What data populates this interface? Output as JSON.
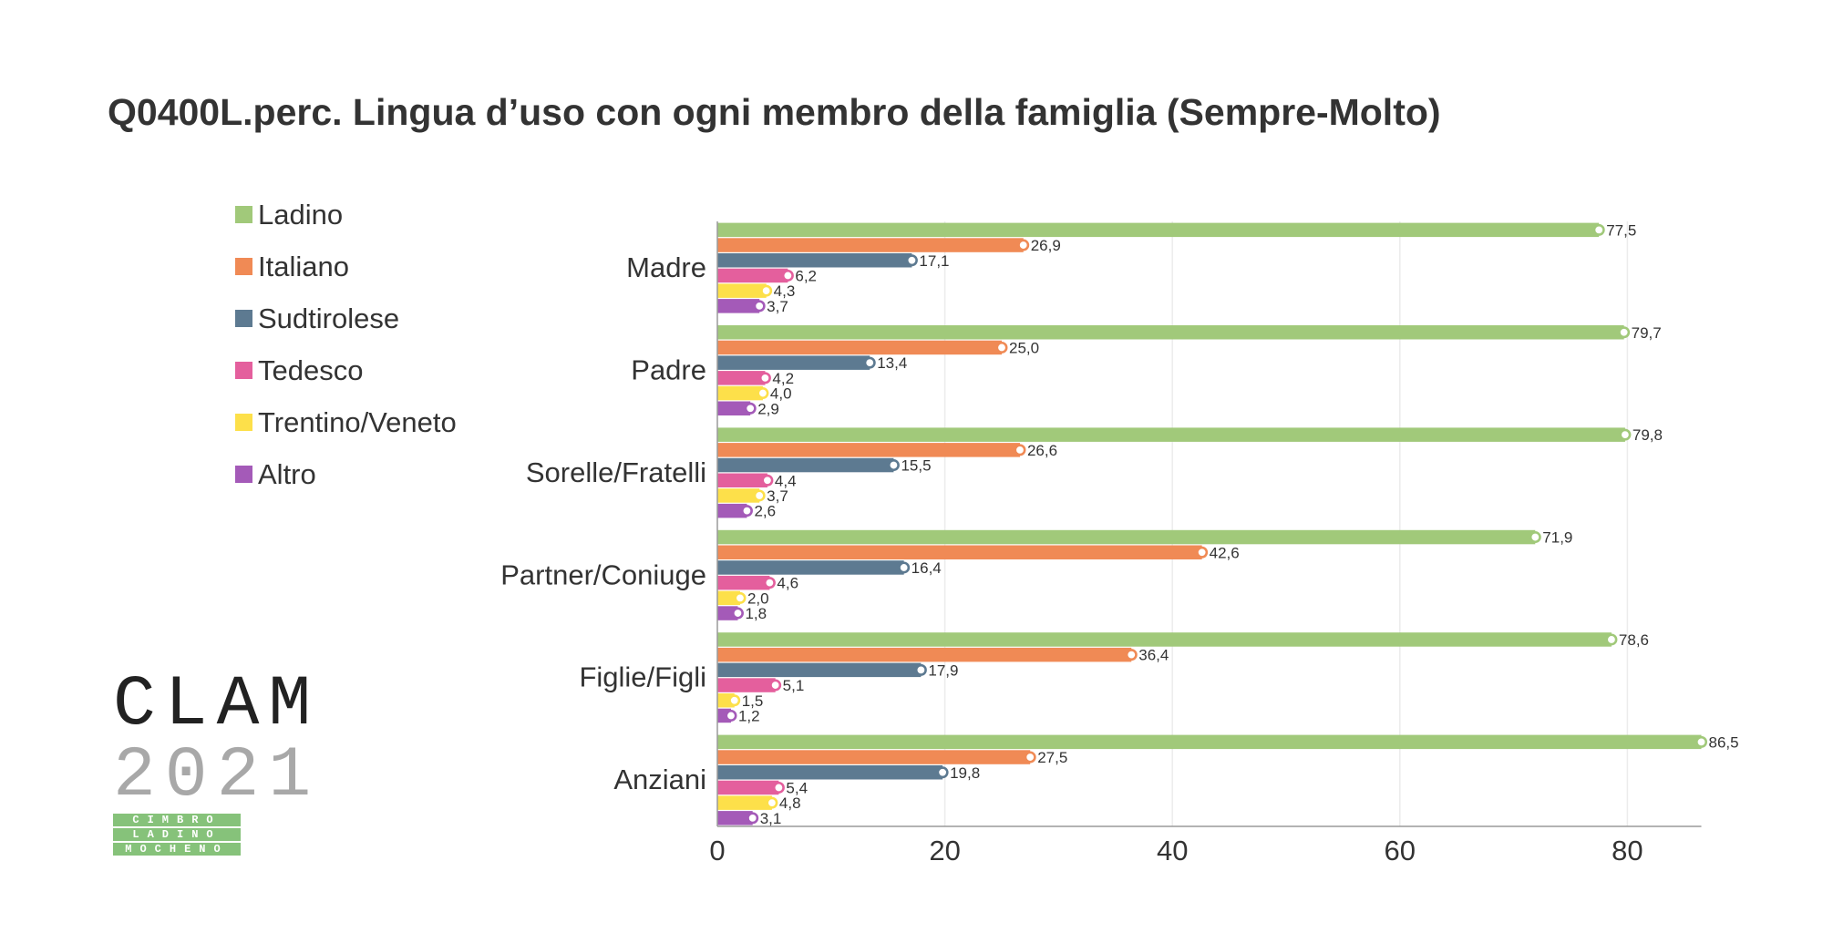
{
  "chart_data": {
    "type": "bar",
    "orientation": "horizontal",
    "title": "Q0400L.perc. Lingua d’uso con ogni membro della famiglia (Sempre-Molto)",
    "categories": [
      "Madre",
      "Padre",
      "Sorelle/Fratelli",
      "Partner/Coniuge",
      "Figlie/Figli",
      "Anziani"
    ],
    "series": [
      {
        "name": "Ladino",
        "color": "#a1c97a",
        "values": [
          77.5,
          79.7,
          79.8,
          71.9,
          78.6,
          86.5
        ],
        "labels": [
          "77,5",
          "79,7",
          "79,8",
          "71,9",
          "78,6",
          "86,5"
        ]
      },
      {
        "name": "Italiano",
        "color": "#f08a55",
        "values": [
          26.9,
          25.0,
          26.6,
          42.6,
          36.4,
          27.5
        ],
        "labels": [
          "26,9",
          "25,0",
          "26,6",
          "42,6",
          "36,4",
          "27,5"
        ]
      },
      {
        "name": "Sudtirolese",
        "color": "#5d7a91",
        "values": [
          17.1,
          13.4,
          15.5,
          16.4,
          17.9,
          19.8
        ],
        "labels": [
          "17,1",
          "13,4",
          "15,5",
          "16,4",
          "17,9",
          "19,8"
        ]
      },
      {
        "name": "Tedesco",
        "color": "#e45f9d",
        "values": [
          6.2,
          4.2,
          4.4,
          4.6,
          5.1,
          5.4
        ],
        "labels": [
          "6,2",
          "4,2",
          "4,4",
          "4,6",
          "5,1",
          "5,4"
        ]
      },
      {
        "name": "Trentino/Veneto",
        "color": "#fde04a",
        "values": [
          4.3,
          4.0,
          3.7,
          2.0,
          1.5,
          4.8
        ],
        "labels": [
          "4,3",
          "4,0",
          "3,7",
          "2,0",
          "1,5",
          "4,8"
        ]
      },
      {
        "name": "Altro",
        "color": "#a45ab8",
        "values": [
          3.7,
          2.9,
          2.6,
          1.8,
          1.2,
          3.1
        ],
        "labels": [
          "3,7",
          "2,9",
          "2,6",
          "1,8",
          "1,2",
          "3,1"
        ]
      }
    ],
    "xticks": [
      0,
      20,
      40,
      60,
      80
    ],
    "xlim": [
      0,
      86.5
    ],
    "grid": "vertical",
    "legend": "left"
  },
  "logo": {
    "word": "CLAM",
    "year": "2021",
    "bands": [
      "CIMBRO",
      "LADINO",
      "MOCHENO"
    ]
  }
}
